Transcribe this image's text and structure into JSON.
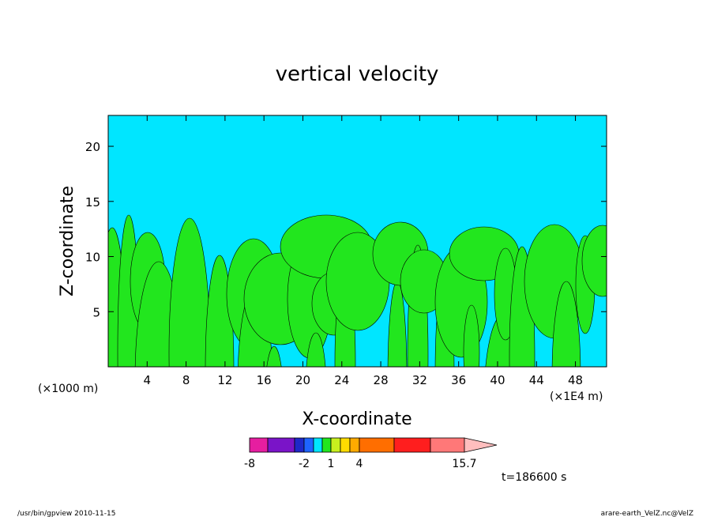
{
  "chart_data": {
    "type": "heatmap",
    "title": "vertical velocity",
    "xlabel": "X-coordinate",
    "ylabel": "Z-coordinate",
    "x_unit_left": "(×1000 m)",
    "x_unit_right": "(×1E4 m)",
    "x_ticks": [
      4,
      8,
      12,
      16,
      20,
      24,
      28,
      32,
      36,
      40,
      44,
      48
    ],
    "y_ticks": [
      5,
      10,
      15,
      20
    ],
    "xlim": [
      0,
      51.2
    ],
    "ylim": [
      0,
      22.8
    ],
    "fill_colors": {
      "positive": "#22e61e",
      "negative": "#00e6ff"
    },
    "colorbar": {
      "tick_labels": [
        "-8",
        "-2",
        "1",
        "4",
        "15.7"
      ],
      "colors": [
        "#e61ea0",
        "#7a14c8",
        "#1e28c8",
        "#1e64ff",
        "#00e6ff",
        "#22e61e",
        "#c8f01e",
        "#ffdc00",
        "#ffaa00",
        "#ff6e00",
        "#ff1e1e",
        "#ff7878",
        "#ffbebe"
      ]
    },
    "time_label": "t=186600 s"
  },
  "footer": {
    "left": "/usr/bin/gpview   2010-11-15",
    "right": "arare-earth_VelZ.nc@VelZ"
  }
}
